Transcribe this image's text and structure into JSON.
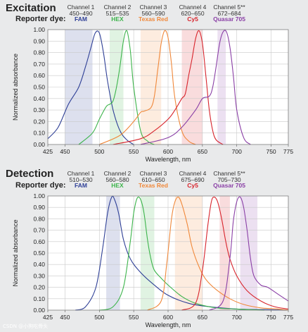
{
  "watermark": "CSDN @小狗吃骨头",
  "chart_data": [
    {
      "type": "line",
      "title": "Excitation",
      "reporter_label": "Reporter dye:",
      "xlabel": "Wavelength, nm",
      "ylabel": "Normalized absorbance",
      "xlim": [
        425,
        775
      ],
      "ylim": [
        0,
        1.0
      ],
      "xticks": [
        "425",
        "450",
        "500",
        "550",
        "600",
        "650",
        "700",
        "750",
        "775"
      ],
      "yticks": [
        "0.00",
        "0.10",
        "0.20",
        "0.30",
        "0.40",
        "0.50",
        "0.60",
        "0.70",
        "0.80",
        "0.90",
        "1.00"
      ],
      "grid": true,
      "channels": [
        {
          "name": "Channel 1",
          "range": "450–490",
          "dye": "FAM",
          "color": "#2e3f96",
          "band": [
            450,
            490
          ]
        },
        {
          "name": "Channel 2",
          "range": "515–535",
          "dye": "HEX",
          "color": "#3cb44b",
          "band": [
            515,
            535
          ]
        },
        {
          "name": "Channel 3",
          "range": "560–590",
          "dye": "Texas Red",
          "color": "#f0883a",
          "band": [
            560,
            590
          ]
        },
        {
          "name": "Channel 4",
          "range": "620–650",
          "dye": "Cy5",
          "color": "#d8242c",
          "band": [
            620,
            650
          ]
        },
        {
          "name": "Channel 5**",
          "range": "672–684",
          "dye": "Quasar 705",
          "color": "#8a3fa6",
          "band": [
            672,
            684
          ]
        }
      ],
      "series": [
        {
          "name": "FAM",
          "color": "#2e3f96",
          "x": [
            425,
            440,
            455,
            470,
            480,
            488,
            494,
            500,
            506,
            512,
            520,
            530,
            540,
            550
          ],
          "y": [
            0.05,
            0.15,
            0.35,
            0.5,
            0.68,
            0.85,
            0.97,
            0.97,
            0.8,
            0.55,
            0.3,
            0.12,
            0.04,
            0
          ]
        },
        {
          "name": "HEX",
          "color": "#3cb44b",
          "x": [
            470,
            490,
            500,
            510,
            515,
            520,
            525,
            530,
            535,
            540,
            545,
            550,
            560,
            570,
            580
          ],
          "y": [
            0,
            0.1,
            0.22,
            0.33,
            0.35,
            0.38,
            0.5,
            0.68,
            0.9,
            0.99,
            0.82,
            0.5,
            0.12,
            0.03,
            0
          ]
        },
        {
          "name": "Texas Red",
          "color": "#f0883a",
          "x": [
            500,
            530,
            550,
            560,
            565,
            575,
            580,
            585,
            590,
            595,
            600,
            605,
            610,
            620,
            630,
            640
          ],
          "y": [
            0,
            0.08,
            0.2,
            0.28,
            0.29,
            0.32,
            0.42,
            0.65,
            0.88,
            0.99,
            0.93,
            0.7,
            0.4,
            0.12,
            0.03,
            0
          ]
        },
        {
          "name": "Cy5",
          "color": "#d8242c",
          "x": [
            520,
            560,
            580,
            600,
            610,
            620,
            625,
            630,
            635,
            640,
            645,
            650,
            655,
            660,
            665,
            670,
            680
          ],
          "y": [
            0,
            0.05,
            0.12,
            0.22,
            0.3,
            0.4,
            0.44,
            0.6,
            0.75,
            0.92,
            0.99,
            0.88,
            0.6,
            0.3,
            0.12,
            0.04,
            0
          ]
        },
        {
          "name": "Quasar 705",
          "color": "#8a3fa6",
          "x": [
            560,
            600,
            620,
            640,
            650,
            660,
            665,
            670,
            675,
            680,
            685,
            690,
            695,
            700,
            710,
            720
          ],
          "y": [
            0,
            0.06,
            0.15,
            0.3,
            0.4,
            0.42,
            0.5,
            0.68,
            0.88,
            0.98,
            0.98,
            0.85,
            0.6,
            0.3,
            0.06,
            0
          ]
        }
      ]
    },
    {
      "type": "line",
      "title": "Detection",
      "reporter_label": "Reporter dye:",
      "xlabel": "Wavelength, nm",
      "ylabel": "Normalized absorbance",
      "xlim": [
        425,
        775
      ],
      "ylim": [
        0,
        1.0
      ],
      "xticks": [
        "425",
        "450",
        "500",
        "550",
        "600",
        "650",
        "700",
        "750",
        "775"
      ],
      "yticks": [
        "0.00",
        "0.10",
        "0.20",
        "0.30",
        "0.40",
        "0.50",
        "0.60",
        "0.70",
        "0.80",
        "0.90",
        "1.00"
      ],
      "grid": true,
      "channels": [
        {
          "name": "Channel 1",
          "range": "510–530",
          "dye": "FAM",
          "color": "#2e3f96",
          "band": [
            510,
            530
          ]
        },
        {
          "name": "Channel 2",
          "range": "560–580",
          "dye": "HEX",
          "color": "#3cb44b",
          "band": [
            560,
            580
          ]
        },
        {
          "name": "Channel 3",
          "range": "610–650",
          "dye": "Texas Red",
          "color": "#f0883a",
          "band": [
            610,
            650
          ]
        },
        {
          "name": "Channel 4",
          "range": "675–690",
          "dye": "Cy5",
          "color": "#d8242c",
          "band": [
            675,
            690
          ]
        },
        {
          "name": "Channel 5**",
          "range": "705–730",
          "dye": "Quasar 705",
          "color": "#8a3fa6",
          "band": [
            705,
            730
          ]
        }
      ],
      "series": [
        {
          "name": "FAM",
          "color": "#2e3f96",
          "x": [
            465,
            480,
            495,
            505,
            512,
            518,
            522,
            528,
            535,
            545,
            560,
            580,
            600,
            630,
            660,
            700,
            740,
            775
          ],
          "y": [
            0,
            0.03,
            0.2,
            0.55,
            0.85,
            0.99,
            0.97,
            0.85,
            0.62,
            0.45,
            0.33,
            0.22,
            0.13,
            0.06,
            0.03,
            0.01,
            0.005,
            0
          ]
        },
        {
          "name": "HEX",
          "color": "#3cb44b",
          "x": [
            500,
            520,
            535,
            545,
            550,
            555,
            560,
            565,
            570,
            575,
            580,
            590,
            600,
            620,
            640,
            670,
            700,
            740
          ],
          "y": [
            0,
            0.03,
            0.2,
            0.6,
            0.85,
            0.98,
            0.97,
            0.85,
            0.62,
            0.45,
            0.35,
            0.28,
            0.22,
            0.12,
            0.06,
            0.02,
            0.01,
            0
          ]
        },
        {
          "name": "Texas Red",
          "color": "#f0883a",
          "x": [
            570,
            590,
            598,
            605,
            610,
            615,
            620,
            628,
            635,
            645,
            655,
            670,
            690,
            710,
            735,
            760,
            775
          ],
          "y": [
            0,
            0.08,
            0.4,
            0.8,
            0.95,
            0.99,
            0.93,
            0.75,
            0.55,
            0.38,
            0.27,
            0.18,
            0.1,
            0.05,
            0.02,
            0.01,
            0
          ]
        },
        {
          "name": "Cy5",
          "color": "#d8242c",
          "x": [
            620,
            640,
            650,
            658,
            663,
            667,
            672,
            678,
            684,
            690,
            700,
            715,
            735,
            755,
            775
          ],
          "y": [
            0,
            0.06,
            0.35,
            0.75,
            0.95,
            0.99,
            0.95,
            0.8,
            0.6,
            0.45,
            0.3,
            0.17,
            0.08,
            0.03,
            0.01
          ]
        },
        {
          "name": "Quasar 705",
          "color": "#8a3fa6",
          "x": [
            660,
            680,
            690,
            695,
            700,
            705,
            710,
            715,
            720,
            725,
            735,
            745,
            760,
            775
          ],
          "y": [
            0,
            0.08,
            0.45,
            0.78,
            0.95,
            0.99,
            0.9,
            0.7,
            0.45,
            0.3,
            0.22,
            0.2,
            0.14,
            0.08
          ]
        }
      ]
    }
  ]
}
